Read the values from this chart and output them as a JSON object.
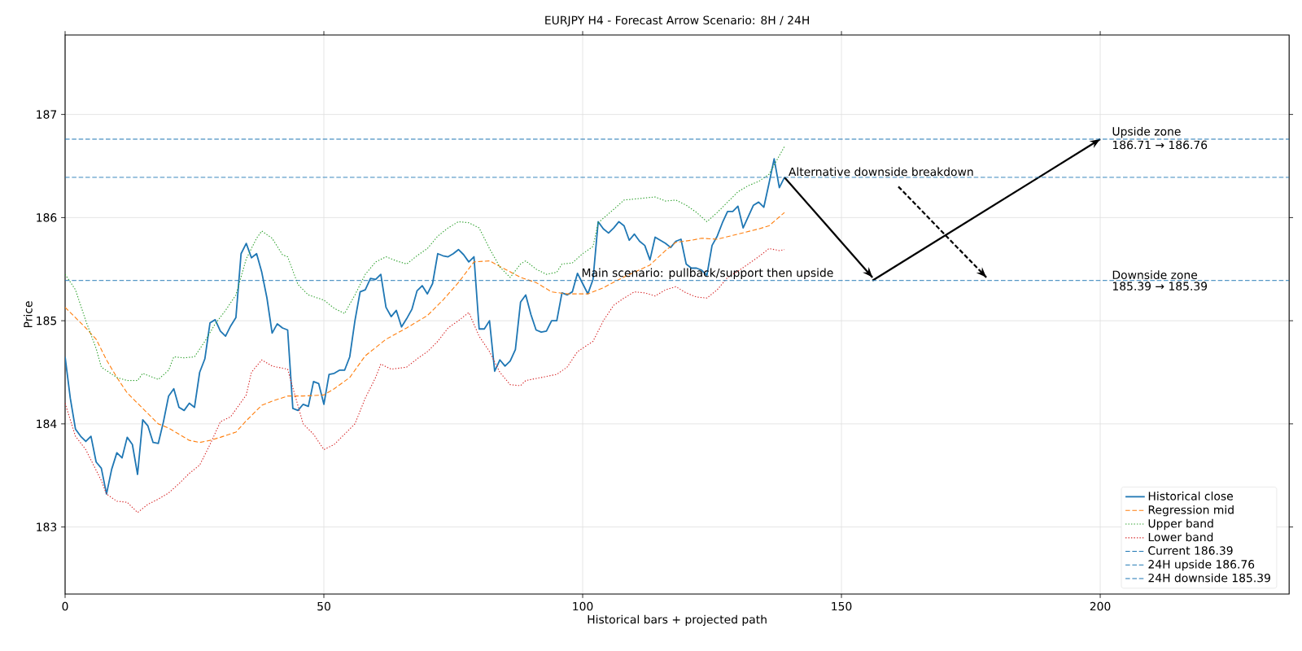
{
  "chart_data": {
    "type": "line",
    "title": "EURJPY H4 - Forecast Arrow Scenario: 8H / 24H",
    "xlabel": "Historical bars + projected path",
    "ylabel": "Price",
    "xlim": [
      0,
      236.5
    ],
    "ylim": [
      182.35,
      187.77
    ],
    "xticks": [
      0,
      50,
      100,
      150,
      200
    ],
    "yticks": [
      183,
      184,
      185,
      186,
      187
    ],
    "grid": true,
    "legend": "bottom right",
    "series": [
      {
        "name": "Historical close",
        "color": "#1f77b4",
        "line_style": "solid",
        "x": [
          0,
          1,
          2,
          3,
          4,
          5,
          6,
          7,
          8,
          9,
          10,
          11,
          12,
          13,
          14,
          15,
          16,
          17,
          18,
          19,
          20,
          21,
          22,
          23,
          24,
          25,
          26,
          27,
          28,
          29,
          30,
          31,
          32,
          33,
          34,
          35,
          36,
          37,
          38,
          39,
          40,
          41,
          42,
          43,
          44,
          45,
          46,
          47,
          48,
          49,
          50,
          51,
          52,
          53,
          54,
          55,
          56,
          57,
          58,
          59,
          60,
          61,
          62,
          63,
          64,
          65,
          66,
          67,
          68,
          69,
          70,
          71,
          72,
          73,
          74,
          75,
          76,
          77,
          78,
          79,
          80,
          81,
          82,
          83,
          84,
          85,
          86,
          87,
          88,
          89,
          90,
          91,
          92,
          93,
          94,
          95,
          96,
          97,
          98,
          99,
          100,
          101,
          102,
          103,
          104,
          105,
          106,
          107,
          108,
          109,
          110,
          111,
          112,
          113,
          114,
          115,
          116,
          117,
          118,
          119,
          120,
          121,
          122,
          123,
          124,
          125,
          126,
          127,
          128,
          129,
          130,
          131,
          132,
          133,
          134,
          135,
          136,
          137,
          138,
          139
        ],
        "values": [
          184.65,
          184.25,
          183.95,
          183.88,
          183.83,
          183.88,
          183.63,
          183.57,
          183.32,
          183.56,
          183.72,
          183.67,
          183.87,
          183.8,
          183.51,
          184.04,
          183.98,
          183.82,
          183.81,
          184.02,
          184.27,
          184.34,
          184.16,
          184.13,
          184.2,
          184.16,
          184.5,
          184.63,
          184.98,
          185.01,
          184.9,
          184.85,
          184.95,
          185.03,
          185.65,
          185.75,
          185.61,
          185.65,
          185.47,
          185.22,
          184.88,
          184.97,
          184.93,
          184.91,
          184.15,
          184.13,
          184.19,
          184.17,
          184.41,
          184.39,
          184.19,
          184.48,
          184.49,
          184.52,
          184.52,
          184.65,
          185.0,
          185.28,
          185.3,
          185.41,
          185.4,
          185.45,
          185.13,
          185.04,
          185.1,
          184.94,
          185.02,
          185.11,
          185.29,
          185.34,
          185.26,
          185.36,
          185.65,
          185.63,
          185.62,
          185.65,
          185.69,
          185.64,
          185.57,
          185.62,
          184.92,
          184.92,
          185.0,
          184.51,
          184.62,
          184.56,
          184.61,
          184.72,
          185.18,
          185.25,
          185.06,
          184.91,
          184.89,
          184.9,
          185.0,
          185.0,
          185.27,
          185.25,
          185.28,
          185.46,
          185.36,
          185.26,
          185.4,
          185.96,
          185.89,
          185.85,
          185.9,
          185.96,
          185.92,
          185.78,
          185.84,
          185.77,
          185.73,
          185.59,
          185.81,
          185.78,
          185.75,
          185.71,
          185.77,
          185.79,
          185.55,
          185.51,
          185.51,
          185.49,
          185.44,
          185.73,
          185.82,
          185.95,
          186.06,
          186.06,
          186.11,
          185.9,
          186.01,
          186.12,
          186.15,
          186.1,
          186.33,
          186.57,
          186.29,
          186.39
        ]
      },
      {
        "name": "Regression mid",
        "color": "#ff7f0e",
        "line_style": "dashed",
        "x": [
          0,
          4,
          6,
          8,
          10,
          12,
          14,
          16,
          18,
          20,
          22,
          24,
          26,
          28,
          30,
          33,
          35,
          38,
          40,
          43,
          46,
          50,
          52,
          55,
          58,
          62,
          66,
          70,
          73,
          76,
          79,
          82,
          85,
          88,
          91,
          94,
          97,
          101,
          104,
          107,
          110,
          113,
          116,
          118,
          121,
          123,
          126,
          130,
          134,
          136,
          139
        ],
        "values": [
          185.13,
          184.93,
          184.82,
          184.62,
          184.45,
          184.3,
          184.2,
          184.1,
          184.0,
          183.96,
          183.9,
          183.84,
          183.82,
          183.84,
          183.87,
          183.92,
          184.03,
          184.18,
          184.22,
          184.27,
          184.27,
          184.28,
          184.34,
          184.45,
          184.66,
          184.82,
          184.93,
          185.05,
          185.2,
          185.37,
          185.57,
          185.58,
          185.5,
          185.42,
          185.37,
          185.28,
          185.26,
          185.26,
          185.32,
          185.4,
          185.47,
          185.54,
          185.68,
          185.76,
          185.78,
          185.8,
          185.79,
          185.84,
          185.89,
          185.92,
          186.05
        ]
      },
      {
        "name": "Upper band",
        "color": "#2ca02c",
        "line_style": "dotted",
        "x": [
          0,
          2,
          4,
          6,
          7,
          10,
          12,
          14,
          15,
          18,
          20,
          21,
          23,
          25,
          27,
          29,
          31,
          33,
          35,
          37,
          38,
          40,
          42,
          43,
          45,
          47,
          50,
          52,
          54,
          56,
          58,
          60,
          62,
          64,
          66,
          68,
          70,
          72,
          74,
          76,
          78,
          80,
          82,
          84,
          86,
          88,
          89,
          91,
          93,
          95,
          96,
          98,
          100,
          102,
          103,
          106,
          108,
          110,
          112,
          114,
          116,
          118,
          120,
          122,
          124,
          126,
          128,
          130,
          132,
          134,
          136,
          138,
          139
        ],
        "values": [
          185.45,
          185.3,
          185.0,
          184.73,
          184.55,
          184.45,
          184.42,
          184.42,
          184.49,
          184.43,
          184.52,
          184.65,
          184.64,
          184.65,
          184.8,
          184.97,
          185.1,
          185.25,
          185.6,
          185.8,
          185.87,
          185.8,
          185.64,
          185.62,
          185.35,
          185.25,
          185.2,
          185.12,
          185.07,
          185.25,
          185.45,
          185.57,
          185.62,
          185.58,
          185.55,
          185.63,
          185.7,
          185.82,
          185.9,
          185.96,
          185.95,
          185.9,
          185.7,
          185.52,
          185.42,
          185.55,
          185.58,
          185.5,
          185.45,
          185.47,
          185.55,
          185.56,
          185.65,
          185.72,
          185.95,
          186.08,
          186.17,
          186.18,
          186.19,
          186.2,
          186.16,
          186.17,
          186.12,
          186.05,
          185.96,
          186.05,
          186.15,
          186.25,
          186.31,
          186.35,
          186.42,
          186.6,
          186.69
        ]
      },
      {
        "name": "Lower band",
        "color": "#d62728",
        "line_style": "dotted",
        "x": [
          0,
          2,
          4,
          6,
          7,
          8,
          10,
          12,
          14,
          16,
          18,
          20,
          22,
          24,
          26,
          28,
          30,
          32,
          33,
          35,
          36,
          38,
          40,
          43,
          44,
          46,
          48,
          50,
          52,
          54,
          56,
          58,
          60,
          61,
          63,
          66,
          68,
          70,
          72,
          74,
          76,
          78,
          80,
          82,
          84,
          86,
          88,
          89,
          92,
          95,
          97,
          99,
          102,
          104,
          106,
          108,
          110,
          112,
          114,
          116,
          118,
          120,
          122,
          124,
          126,
          128,
          130,
          132,
          134,
          136,
          138,
          139
        ],
        "values": [
          184.2,
          183.88,
          183.75,
          183.55,
          183.45,
          183.32,
          183.25,
          183.24,
          183.14,
          183.22,
          183.27,
          183.33,
          183.42,
          183.52,
          183.6,
          183.8,
          184.02,
          184.07,
          184.14,
          184.28,
          184.5,
          184.62,
          184.56,
          184.53,
          184.35,
          184.0,
          183.9,
          183.75,
          183.8,
          183.9,
          184.0,
          184.25,
          184.45,
          184.58,
          184.53,
          184.55,
          184.63,
          184.7,
          184.8,
          184.93,
          185.0,
          185.08,
          184.85,
          184.7,
          184.5,
          184.38,
          184.37,
          184.42,
          184.45,
          184.48,
          184.55,
          184.7,
          184.8,
          185.0,
          185.15,
          185.22,
          185.28,
          185.27,
          185.24,
          185.3,
          185.33,
          185.27,
          185.23,
          185.22,
          185.3,
          185.42,
          185.48,
          185.55,
          185.62,
          185.7,
          185.68,
          185.69
        ]
      },
      {
        "color": "#000000",
        "line_style": "solid",
        "x": [
          139,
          156
        ],
        "values": [
          186.39,
          185.42
        ]
      },
      {
        "color": "#000000",
        "line_style": "solid",
        "x": [
          156,
          200
        ],
        "values": [
          185.39,
          186.76
        ]
      },
      {
        "color": "#000000",
        "line_style": "dashed",
        "x": [
          161,
          178
        ],
        "values": [
          186.3,
          185.42
        ]
      }
    ],
    "ref_lines": [
      {
        "axis": "y",
        "value": 186.39,
        "label": "Current 186.39",
        "color": "#1f77b4",
        "line_style": "dashed"
      },
      {
        "axis": "y",
        "value": 186.76,
        "label": "24H upside 186.76",
        "color": "#1f77b4",
        "line_style": "dashed"
      },
      {
        "axis": "y",
        "value": 185.39,
        "label": "24H downside 185.39",
        "color": "#1f77b4",
        "line_style": "dashed"
      }
    ],
    "annotations": [
      {
        "text": "Main scenario: pullback/support then upside",
        "x": 99.5,
        "y": 185.39
      },
      {
        "text": "Alternative downside breakdown",
        "x": 139.5,
        "y": 186.39
      },
      {
        "text": "Upside zone",
        "x": 202,
        "y": 186.76
      },
      {
        "text": "186.71 → 186.76",
        "x": 202,
        "y": 186.76
      },
      {
        "text": "Downside zone",
        "x": 202,
        "y": 185.39
      },
      {
        "text": "185.39 → 185.39",
        "x": 202,
        "y": 185.39
      }
    ]
  }
}
